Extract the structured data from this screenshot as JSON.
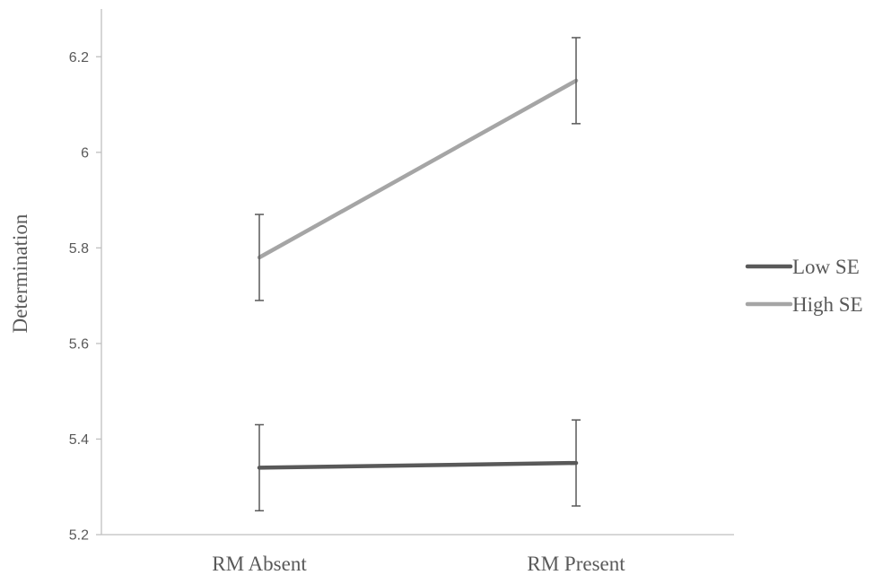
{
  "chart_data": {
    "type": "line",
    "title": "",
    "xlabel": "",
    "ylabel": "Determination",
    "categories": [
      "RM Absent",
      "RM Present"
    ],
    "ylim": [
      5.2,
      6.3
    ],
    "yticks": [
      "5.2",
      "5.4",
      "5.6",
      "5.8",
      "6",
      "6.2"
    ],
    "grid": false,
    "legend_position": "right",
    "series": [
      {
        "name": "Low SE",
        "values": [
          5.34,
          5.35
        ],
        "error_low": [
          5.25,
          5.26
        ],
        "error_high": [
          5.43,
          5.44
        ],
        "color": "#595959"
      },
      {
        "name": "High SE",
        "values": [
          5.78,
          6.15
        ],
        "error_low": [
          5.69,
          6.06
        ],
        "error_high": [
          5.87,
          6.24
        ],
        "color": "#a5a5a5"
      }
    ],
    "error_bar_color": "#595959",
    "axis_color": "#bfbfbf"
  }
}
